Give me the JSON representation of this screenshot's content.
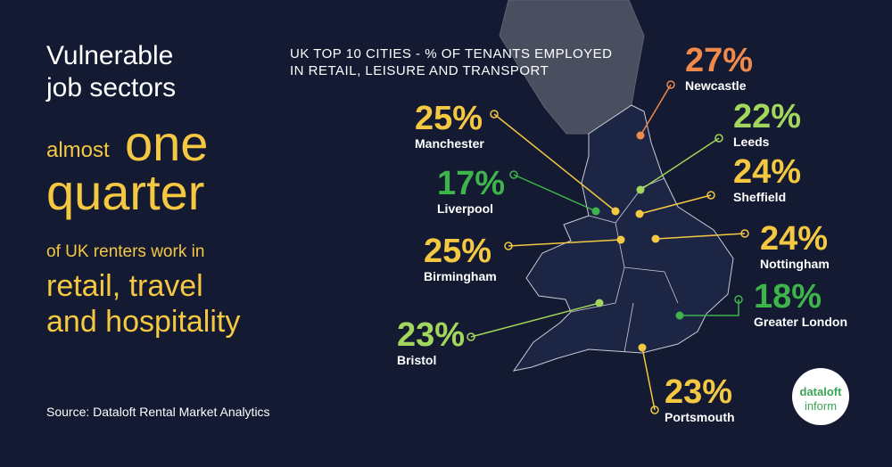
{
  "headline": {
    "line1": "Vulnerable",
    "line2": "job sectors",
    "almost": "almost",
    "one": "one",
    "quarter": "quarter",
    "renters": "of UK renters work in",
    "sectors1": "retail, travel",
    "sectors2": "and hospitality"
  },
  "source": "Source: Dataloft Rental Market Analytics",
  "map_title": {
    "line1": "UK TOP 10 CITIES - % OF TENANTS EMPLOYED",
    "line2": "IN RETAIL, LEISURE AND TRANSPORT"
  },
  "cities": [
    {
      "name": "Newcastle",
      "share": "27%"
    },
    {
      "name": "Leeds",
      "share": "22%"
    },
    {
      "name": "Sheffield",
      "share": "24%"
    },
    {
      "name": "Manchester",
      "share": "25%"
    },
    {
      "name": "Liverpool",
      "share": "17%"
    },
    {
      "name": "Birmingham",
      "share": "25%"
    },
    {
      "name": "Nottingham",
      "share": "24%"
    },
    {
      "name": "Greater London",
      "share": "18%"
    },
    {
      "name": "Bristol",
      "share": "23%"
    },
    {
      "name": "Portsmouth",
      "share": "23%"
    }
  ],
  "logo": {
    "line1": "dataloft",
    "line2": "inform"
  }
}
